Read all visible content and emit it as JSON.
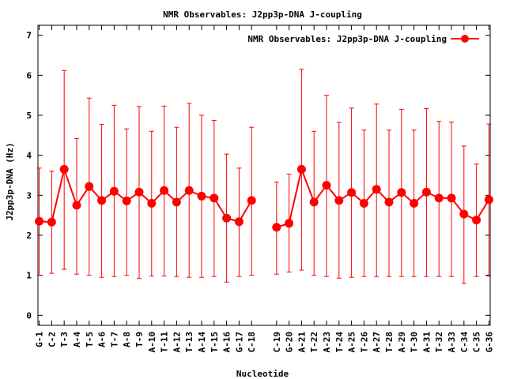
{
  "chart_data": {
    "type": "line",
    "title": "NMR Observables: J2pp3p-DNA J-coupling",
    "xlabel": "Nucleotide",
    "ylabel": "J2pp3p-DNA (Hz)",
    "ylim": [
      -0.25,
      7.25
    ],
    "yticks": [
      0,
      1,
      2,
      3,
      4,
      5,
      6,
      7
    ],
    "legend_position": "top-right",
    "grid": false,
    "colors": {
      "series": "#ff0000",
      "marker": "#ff0000",
      "axis": "#000000"
    },
    "categories": [
      "G-1",
      "C-2",
      "T-3",
      "A-4",
      "T-5",
      "A-6",
      "T-7",
      "A-8",
      "T-9",
      "A-10",
      "T-11",
      "A-12",
      "T-13",
      "A-14",
      "T-15",
      "A-16",
      "G-17",
      "C-18",
      "C-19",
      "G-20",
      "A-21",
      "T-22",
      "A-23",
      "T-24",
      "A-25",
      "T-26",
      "A-27",
      "T-28",
      "A-29",
      "T-30",
      "A-31",
      "T-32",
      "A-33",
      "C-34",
      "C-35",
      "G-36"
    ],
    "category_positions": [
      1,
      2,
      3,
      4,
      5,
      6,
      7,
      8,
      9,
      10,
      11,
      12,
      13,
      14,
      15,
      16,
      17,
      18,
      20,
      21,
      22,
      23,
      24,
      25,
      26,
      27,
      28,
      29,
      30,
      31,
      32,
      33,
      34,
      35,
      36,
      37
    ],
    "xlim": [
      0.9,
      37.1
    ],
    "series": [
      {
        "name": "NMR Observables: J2pp3p-DNA J-coupling",
        "segments": [
          {
            "values": [
              2.35,
              2.33,
              3.65,
              2.75,
              3.22,
              2.87,
              3.1,
              2.86,
              3.08,
              2.8,
              3.12,
              2.83,
              3.12,
              2.98,
              2.93,
              2.43,
              2.34,
              2.87
            ],
            "err_low": [
              1.0,
              1.05,
              1.15,
              1.03,
              1.0,
              0.95,
              0.97,
              1.0,
              0.92,
              0.98,
              0.98,
              0.97,
              0.95,
              0.95,
              0.97,
              0.83,
              0.97,
              1.0
            ],
            "err_high": [
              3.68,
              3.6,
              6.12,
              4.42,
              5.43,
              4.77,
              5.25,
              4.66,
              5.22,
              4.6,
              5.23,
              4.7,
              5.3,
              5.0,
              4.87,
              4.03,
              3.68,
              4.7
            ]
          },
          {
            "values": [
              2.2,
              2.3,
              3.65,
              2.83,
              3.25,
              2.87,
              3.07,
              2.8,
              3.15,
              2.83,
              3.07,
              2.8,
              3.08,
              2.93,
              2.93,
              2.53,
              2.38,
              2.89
            ],
            "err_low": [
              1.03,
              1.08,
              1.13,
              1.0,
              0.97,
              0.93,
              0.95,
              0.97,
              0.97,
              0.97,
              0.97,
              0.97,
              0.97,
              0.97,
              0.97,
              0.8,
              0.97,
              0.98
            ],
            "err_high": [
              3.33,
              3.53,
              6.15,
              4.6,
              5.5,
              4.82,
              5.18,
              4.63,
              5.28,
              4.63,
              5.15,
              4.63,
              5.17,
              4.85,
              4.83,
              4.23,
              3.78,
              4.78
            ]
          }
        ]
      }
    ]
  }
}
